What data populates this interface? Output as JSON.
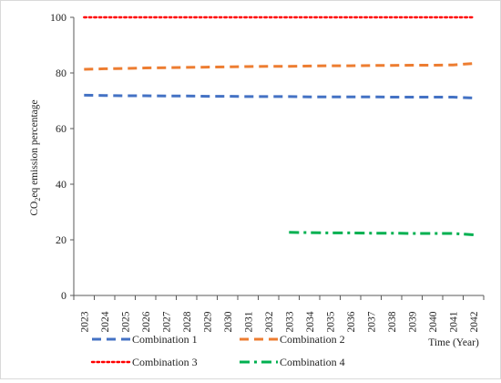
{
  "chart_data": {
    "type": "line",
    "title": "",
    "ylabel_parts": [
      "CO",
      "2",
      "eq emission percentage"
    ],
    "xlabel": "Time (Year)",
    "ylim": [
      0,
      100
    ],
    "yticks": [
      "0",
      "20",
      "40",
      "60",
      "80",
      "100"
    ],
    "grid": false,
    "legend_position": "bottom",
    "x": [
      "2023",
      "2024",
      "2025",
      "2026",
      "2027",
      "2028",
      "2029",
      "2030",
      "2031",
      "2032",
      "2033",
      "2034",
      "2035",
      "2036",
      "2037",
      "2038",
      "2039",
      "2040",
      "2041",
      "2042"
    ],
    "series": [
      {
        "name": "Combination 1",
        "color": "#4472c4",
        "style": "dash",
        "values": [
          72,
          71.9,
          71.8,
          71.8,
          71.7,
          71.7,
          71.6,
          71.6,
          71.5,
          71.5,
          71.5,
          71.4,
          71.4,
          71.4,
          71.4,
          71.3,
          71.3,
          71.3,
          71.3,
          71.0
        ]
      },
      {
        "name": "Combination 2",
        "color": "#ed7d31",
        "style": "dash",
        "values": [
          81.3,
          81.5,
          81.6,
          81.8,
          81.9,
          82.0,
          82.1,
          82.2,
          82.3,
          82.4,
          82.4,
          82.5,
          82.6,
          82.6,
          82.7,
          82.7,
          82.8,
          82.8,
          82.9,
          83.4
        ]
      },
      {
        "name": "Combination 3",
        "color": "#ff0000",
        "style": "dot",
        "values": [
          100,
          100,
          100,
          100,
          100,
          100,
          100,
          100,
          100,
          100,
          100,
          100,
          100,
          100,
          100,
          100,
          100,
          100,
          100,
          100
        ]
      },
      {
        "name": "Combination 4",
        "color": "#00b050",
        "style": "dashdot",
        "values": [
          null,
          null,
          null,
          null,
          null,
          null,
          null,
          null,
          null,
          null,
          22.7,
          22.6,
          22.5,
          22.5,
          22.4,
          22.4,
          22.3,
          22.3,
          22.3,
          21.8
        ]
      }
    ]
  }
}
